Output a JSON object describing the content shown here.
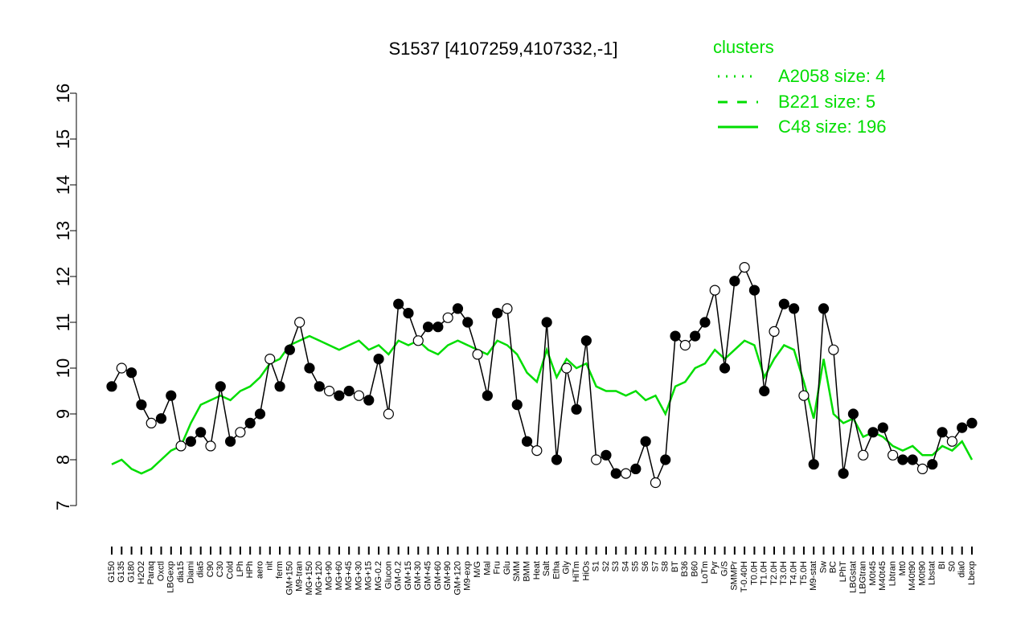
{
  "chart_data": {
    "type": "line",
    "title": "S1537 [4107259,4107332,-1]",
    "xlabel": "",
    "ylabel": "",
    "ylim": [
      7,
      16
    ],
    "yticks": [
      7,
      8,
      9,
      10,
      11,
      12,
      13,
      14,
      15,
      16
    ],
    "x_tick_labels": [
      "G150",
      "G135",
      "G180",
      "H2O2",
      "Paraq",
      "Oxctl",
      "LBGexp",
      "dia15",
      "Diami",
      "dia5",
      "C90",
      "C30",
      "Cold",
      "LPh",
      "HPh",
      "aero",
      "nit",
      "ferm",
      "GM+150",
      "M9-tran",
      "MG+150",
      "MG+120",
      "MG+90",
      "MG+60",
      "MG+45",
      "MG+30",
      "MG+15",
      "MG-0.2",
      "Glucon",
      "GM-0.2",
      "GM+15",
      "GM+30",
      "GM+45",
      "GM+60",
      "GM+90",
      "GM+120",
      "M9-exp",
      "M/G",
      "Mal",
      "Fru",
      "Glu",
      "SMM",
      "BMM",
      "Heat",
      "Salt",
      "Etha",
      "Gly",
      "HiTm",
      "HiOs",
      "S1",
      "S2",
      "S3",
      "S4",
      "S5",
      "S6",
      "S7",
      "S8",
      "BT",
      "B36",
      "B60",
      "LoTm",
      "Pyr",
      "G/S",
      "SMMPr",
      "T-0.40H",
      "T0.0H",
      "T1.0H",
      "T2.0H",
      "T3.0H",
      "T4.0H",
      "T5.0H",
      "M9-stat",
      "Sw",
      "BC",
      "LPhT",
      "LBGstat",
      "LBGtran",
      "M0t45",
      "M40t45",
      "Lbtran",
      "Mt0",
      "M40t90",
      "M0t90",
      "Lbstat",
      "BI",
      "S0",
      "dia0",
      "Lbexp"
    ],
    "legend": {
      "title": "clusters",
      "entries": [
        {
          "label": "A2058 size: 4",
          "style": "dotted"
        },
        {
          "label": "B221 size: 5",
          "style": "dashed"
        },
        {
          "label": "C48 size: 196",
          "style": "solid"
        }
      ],
      "placement": "top-right"
    },
    "colors": {
      "series": "#000000",
      "cluster": "#00dd00"
    },
    "series": [
      {
        "name": "",
        "values": [
          9.6,
          10.0,
          9.9,
          9.2,
          8.8,
          8.9,
          9.4,
          8.3,
          8.4,
          8.6,
          8.3,
          9.6,
          8.4,
          8.6,
          8.8,
          9.0,
          10.2,
          9.6,
          10.4,
          11.0,
          10.0,
          9.6,
          9.5,
          9.4,
          9.5,
          9.4,
          9.3,
          10.2,
          9.0,
          11.4,
          11.2,
          10.6,
          10.9,
          10.9,
          11.1,
          11.3,
          11.0,
          10.3,
          9.4,
          11.2,
          11.3,
          9.2,
          8.4,
          8.2,
          11.0,
          8.0,
          10.0,
          9.1,
          10.6,
          8.0,
          8.1,
          7.7,
          7.7,
          7.8,
          8.4,
          7.5,
          8.0,
          10.7,
          10.5,
          10.7,
          11.0,
          11.7,
          10.0,
          11.9,
          12.2,
          11.7,
          9.5,
          10.8,
          11.4,
          11.3,
          9.4,
          7.9,
          11.3,
          10.4,
          7.7,
          9.0,
          8.1,
          8.6,
          8.7,
          8.1,
          8.0,
          8.0,
          7.8,
          7.9,
          8.6,
          8.4,
          8.7,
          8.8
        ]
      },
      {
        "name": "",
        "style": "cluster-solid",
        "values": [
          7.9,
          8.0,
          7.8,
          7.7,
          7.8,
          8.0,
          8.2,
          8.3,
          8.8,
          9.2,
          9.3,
          9.4,
          9.3,
          9.5,
          9.6,
          9.8,
          10.1,
          10.2,
          10.5,
          10.6,
          10.7,
          10.6,
          10.5,
          10.4,
          10.5,
          10.6,
          10.4,
          10.5,
          10.3,
          10.6,
          10.5,
          10.6,
          10.4,
          10.3,
          10.5,
          10.6,
          10.5,
          10.4,
          10.3,
          10.6,
          10.5,
          10.3,
          9.9,
          9.7,
          10.4,
          9.8,
          10.2,
          10.0,
          10.1,
          9.6,
          9.5,
          9.5,
          9.4,
          9.5,
          9.3,
          9.4,
          9.0,
          9.6,
          9.7,
          10.0,
          10.1,
          10.4,
          10.2,
          10.4,
          10.6,
          10.5,
          9.8,
          10.2,
          10.5,
          10.4,
          9.7,
          8.9,
          10.2,
          9.0,
          8.8,
          8.9,
          8.5,
          8.6,
          8.5,
          8.3,
          8.2,
          8.3,
          8.1,
          8.1,
          8.3,
          8.2,
          8.4,
          8.0
        ]
      }
    ]
  }
}
